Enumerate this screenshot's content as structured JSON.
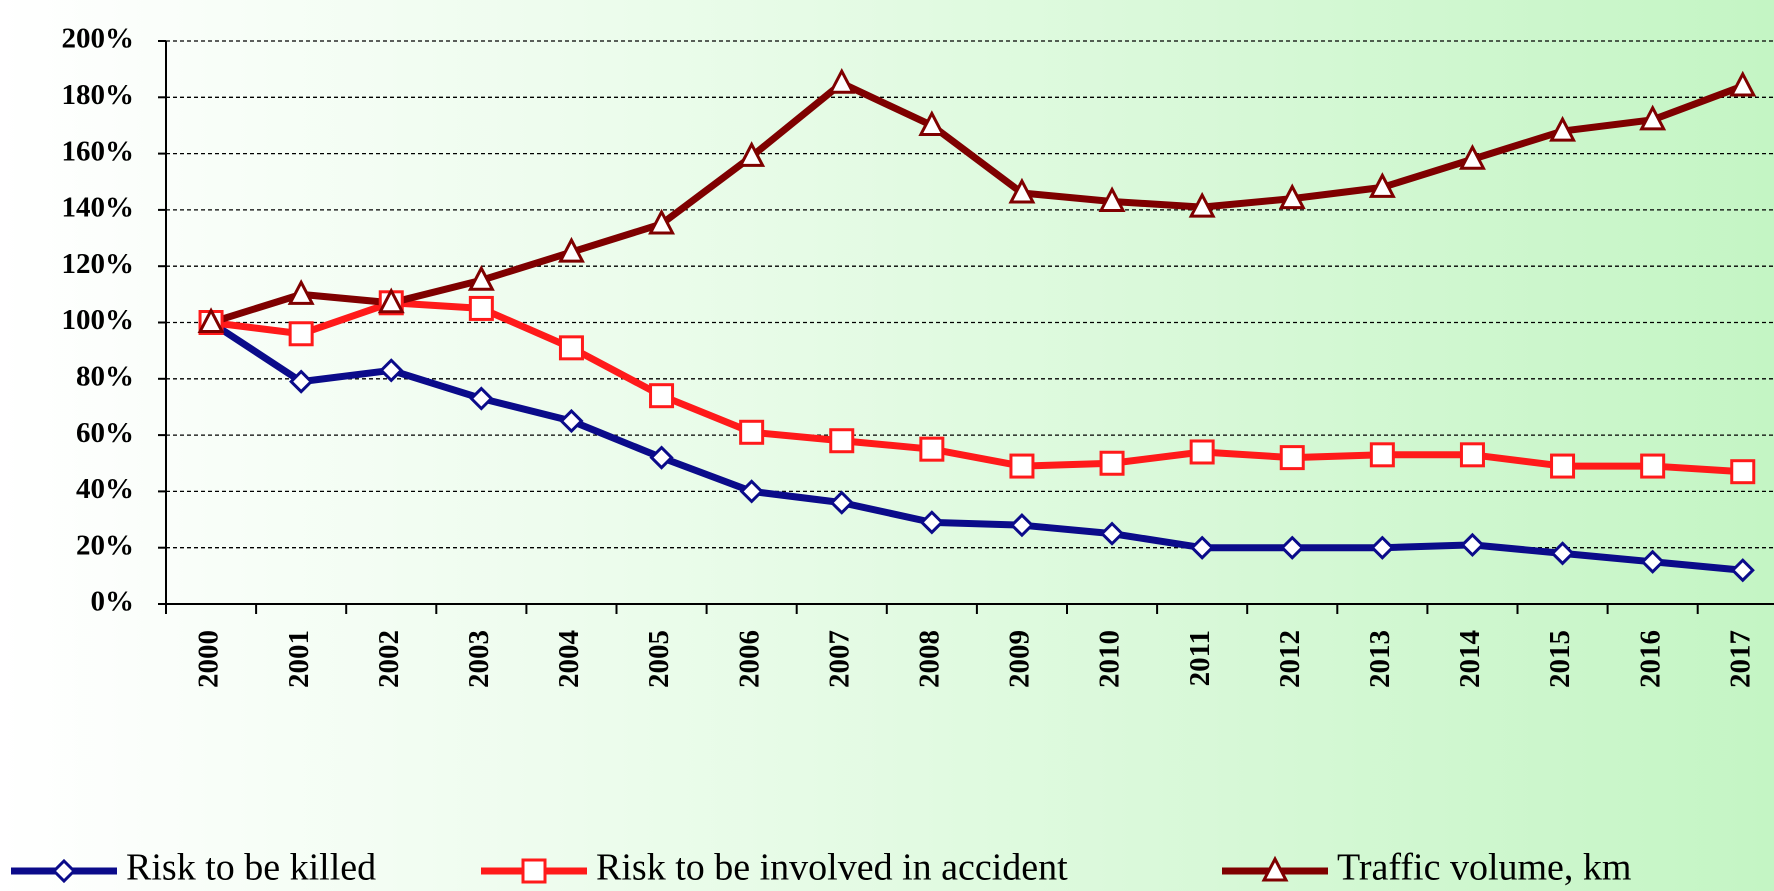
{
  "chart_data": {
    "type": "line",
    "categories": [
      "2000",
      "2001",
      "2002",
      "2003",
      "2004",
      "2005",
      "2006",
      "2007",
      "2008",
      "2009",
      "2010",
      "2011",
      "2012",
      "2013",
      "2014",
      "2015",
      "2016",
      "2017"
    ],
    "series": [
      {
        "name": "Risk to be killed",
        "color": "#0b0b8a",
        "marker": "diamond",
        "values": [
          100,
          79,
          83,
          73,
          65,
          52,
          40,
          36,
          29,
          28,
          25,
          20,
          20,
          20,
          21,
          18,
          15,
          12
        ]
      },
      {
        "name": "Risk to be involved in accident",
        "color": "#ff1a1a",
        "marker": "square",
        "values": [
          100,
          96,
          107,
          105,
          91,
          74,
          61,
          58,
          55,
          49,
          50,
          54,
          52,
          53,
          53,
          49,
          49,
          47
        ]
      },
      {
        "name": "Traffic volume, km",
        "color": "#7f0000",
        "marker": "triangle",
        "values": [
          100,
          110,
          107,
          115,
          125,
          135,
          159,
          185,
          170,
          146,
          143,
          141,
          144,
          148,
          158,
          168,
          172,
          184
        ]
      }
    ],
    "ylim": [
      0,
      200
    ],
    "yticks": [
      {
        "value": 0,
        "label": "0%"
      },
      {
        "value": 20,
        "label": "20%"
      },
      {
        "value": 40,
        "label": "40%"
      },
      {
        "value": 60,
        "label": "60%"
      },
      {
        "value": 80,
        "label": "80%"
      },
      {
        "value": 100,
        "label": "100%"
      },
      {
        "value": 120,
        "label": "120%"
      },
      {
        "value": 140,
        "label": "140%"
      },
      {
        "value": 160,
        "label": "160%"
      },
      {
        "value": 180,
        "label": "180%"
      },
      {
        "value": 200,
        "label": "200%"
      }
    ],
    "grid": true,
    "legend": "bottom"
  }
}
